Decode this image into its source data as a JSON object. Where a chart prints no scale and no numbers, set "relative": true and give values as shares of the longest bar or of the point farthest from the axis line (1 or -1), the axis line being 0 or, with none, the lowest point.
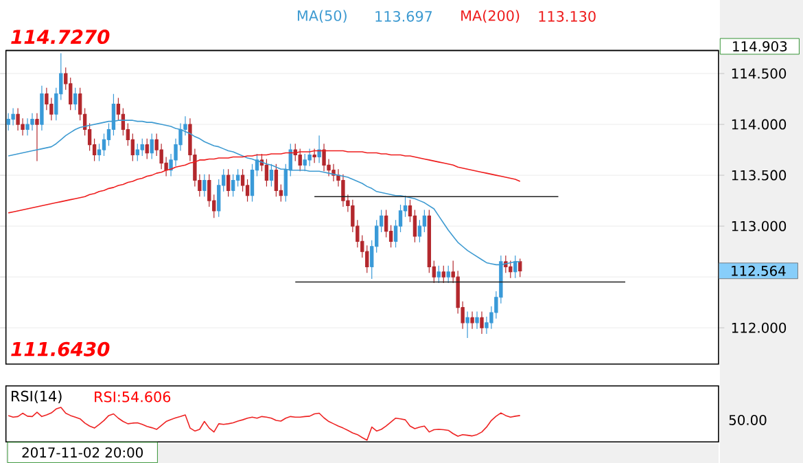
{
  "chart_data": [
    {
      "type": "candlestick",
      "categories": [
        null,
        null,
        null,
        null,
        null,
        null,
        null,
        null,
        null,
        null,
        null,
        null,
        null,
        null,
        null,
        null,
        null,
        null,
        null,
        null,
        null,
        null,
        null,
        null,
        null,
        null,
        null,
        null,
        null,
        null,
        null,
        null,
        null,
        null,
        null,
        null,
        null,
        null,
        null,
        null,
        null,
        null,
        null,
        null,
        null,
        null,
        null,
        null,
        null,
        null,
        null,
        null,
        null,
        null,
        null,
        null,
        null,
        null,
        null,
        null,
        null,
        null,
        null,
        null,
        null,
        null,
        null,
        null,
        null,
        null,
        null,
        null,
        null,
        null,
        null,
        null,
        null,
        null,
        null,
        null,
        null,
        null,
        null,
        null,
        null,
        null,
        null,
        null,
        null,
        null,
        null,
        null,
        null,
        null,
        null,
        null,
        null,
        null,
        null,
        null,
        null,
        null,
        null,
        null,
        null,
        null,
        null,
        null,
        null,
        null,
        null,
        null,
        null,
        null,
        null,
        null,
        null,
        null,
        null,
        null,
        null,
        null,
        null,
        null,
        null,
        null,
        null,
        null,
        null,
        null,
        null,
        null,
        null,
        null,
        null,
        null,
        null,
        null,
        null,
        null,
        null,
        null,
        null,
        null,
        null,
        null,
        null,
        null,
        null
      ],
      "ohlc": [
        [
          114.0,
          114.11,
          113.94,
          114.05
        ],
        [
          114.05,
          114.16,
          113.99,
          114.1
        ],
        [
          114.1,
          114.16,
          113.94,
          114.0
        ],
        [
          114.0,
          114.06,
          113.89,
          113.95
        ],
        [
          113.95,
          114.06,
          113.89,
          114.0
        ],
        [
          114.0,
          114.11,
          113.94,
          114.05
        ],
        [
          114.05,
          114.11,
          113.64,
          114.0
        ],
        [
          114.0,
          114.38,
          113.94,
          114.3
        ],
        [
          114.3,
          114.36,
          114.14,
          114.2
        ],
        [
          114.2,
          114.26,
          114.04,
          114.1
        ],
        [
          114.1,
          114.36,
          114.04,
          114.3
        ],
        [
          114.3,
          114.7,
          114.24,
          114.5
        ],
        [
          114.5,
          114.56,
          114.34,
          114.4
        ],
        [
          114.4,
          114.46,
          114.14,
          114.2
        ],
        [
          114.2,
          114.36,
          114.14,
          114.3
        ],
        [
          114.3,
          114.36,
          114.04,
          114.1
        ],
        [
          114.1,
          114.16,
          113.89,
          113.95
        ],
        [
          113.95,
          114.01,
          113.74,
          113.8
        ],
        [
          113.8,
          113.86,
          113.64,
          113.7
        ],
        [
          113.7,
          113.81,
          113.64,
          113.75
        ],
        [
          113.75,
          113.91,
          113.69,
          113.85
        ],
        [
          113.85,
          114.01,
          113.79,
          113.95
        ],
        [
          113.95,
          114.3,
          113.89,
          114.2
        ],
        [
          114.2,
          114.26,
          114.04,
          114.1
        ],
        [
          114.1,
          114.16,
          113.89,
          113.95
        ],
        [
          113.95,
          114.01,
          113.79,
          113.85
        ],
        [
          113.85,
          113.91,
          113.64,
          113.7
        ],
        [
          113.7,
          113.81,
          113.64,
          113.75
        ],
        [
          113.75,
          113.86,
          113.69,
          113.8
        ],
        [
          113.8,
          113.86,
          113.66,
          113.72
        ],
        [
          113.72,
          113.91,
          113.66,
          113.85
        ],
        [
          113.85,
          113.91,
          113.69,
          113.75
        ],
        [
          113.75,
          113.81,
          113.56,
          113.62
        ],
        [
          113.62,
          113.68,
          113.49,
          113.55
        ],
        [
          113.55,
          113.71,
          113.49,
          113.65
        ],
        [
          113.65,
          113.86,
          113.59,
          113.8
        ],
        [
          113.8,
          114.01,
          113.74,
          113.95
        ],
        [
          113.95,
          114.08,
          113.89,
          114.0
        ],
        [
          114.0,
          114.06,
          113.64,
          113.7
        ],
        [
          113.7,
          113.76,
          113.39,
          113.45
        ],
        [
          113.45,
          113.51,
          113.29,
          113.35
        ],
        [
          113.35,
          113.51,
          113.29,
          113.45
        ],
        [
          113.45,
          113.51,
          113.19,
          113.25
        ],
        [
          113.25,
          113.31,
          113.08,
          113.15
        ],
        [
          113.15,
          113.46,
          113.09,
          113.4
        ],
        [
          113.4,
          113.56,
          113.34,
          113.5
        ],
        [
          113.5,
          113.56,
          113.29,
          113.35
        ],
        [
          113.35,
          113.51,
          113.29,
          113.45
        ],
        [
          113.45,
          113.56,
          113.39,
          113.5
        ],
        [
          113.5,
          113.56,
          113.34,
          113.4
        ],
        [
          113.4,
          113.46,
          113.24,
          113.3
        ],
        [
          113.3,
          113.61,
          113.24,
          113.55
        ],
        [
          113.55,
          113.71,
          113.49,
          113.65
        ],
        [
          113.65,
          113.71,
          113.54,
          113.6
        ],
        [
          113.6,
          113.66,
          113.39,
          113.45
        ],
        [
          113.45,
          113.61,
          113.39,
          113.55
        ],
        [
          113.55,
          113.61,
          113.29,
          113.35
        ],
        [
          113.35,
          113.41,
          113.24,
          113.3
        ],
        [
          113.3,
          113.61,
          113.24,
          113.55
        ],
        [
          113.55,
          113.81,
          113.49,
          113.75
        ],
        [
          113.75,
          113.81,
          113.64,
          113.7
        ],
        [
          113.7,
          113.76,
          113.54,
          113.6
        ],
        [
          113.6,
          113.71,
          113.54,
          113.65
        ],
        [
          113.65,
          113.76,
          113.59,
          113.7
        ],
        [
          113.7,
          113.76,
          113.62,
          113.68
        ],
        [
          113.68,
          113.89,
          113.62,
          113.75
        ],
        [
          113.75,
          113.81,
          113.54,
          113.6
        ],
        [
          113.6,
          113.66,
          113.49,
          113.55
        ],
        [
          113.55,
          113.61,
          113.44,
          113.5
        ],
        [
          113.5,
          113.56,
          113.39,
          113.45
        ],
        [
          113.45,
          113.51,
          113.19,
          113.25
        ],
        [
          113.25,
          113.31,
          113.14,
          113.2
        ],
        [
          113.2,
          113.26,
          112.94,
          113.0
        ],
        [
          113.0,
          113.06,
          112.79,
          112.85
        ],
        [
          112.85,
          112.91,
          112.69,
          112.75
        ],
        [
          112.75,
          112.81,
          112.54,
          112.6
        ],
        [
          112.6,
          112.86,
          112.48,
          112.8
        ],
        [
          112.8,
          113.06,
          112.74,
          113.0
        ],
        [
          113.0,
          113.16,
          112.94,
          113.1
        ],
        [
          113.1,
          113.16,
          112.89,
          112.95
        ],
        [
          112.95,
          113.01,
          112.79,
          112.85
        ],
        [
          112.85,
          113.06,
          112.79,
          113.0
        ],
        [
          113.0,
          113.21,
          112.94,
          113.15
        ],
        [
          113.15,
          113.3,
          113.09,
          113.2
        ],
        [
          113.2,
          113.26,
          113.04,
          113.1
        ],
        [
          113.1,
          113.16,
          112.84,
          112.9
        ],
        [
          112.9,
          113.06,
          112.84,
          113.0
        ],
        [
          113.0,
          113.16,
          112.94,
          113.1
        ],
        [
          113.1,
          113.16,
          112.54,
          112.6
        ],
        [
          112.6,
          112.66,
          112.44,
          112.5
        ],
        [
          112.5,
          112.61,
          112.44,
          112.55
        ],
        [
          112.55,
          112.61,
          112.44,
          112.5
        ],
        [
          112.5,
          112.61,
          112.44,
          112.55
        ],
        [
          112.55,
          112.66,
          112.44,
          112.5
        ],
        [
          112.5,
          112.56,
          112.14,
          112.2
        ],
        [
          112.2,
          112.26,
          111.99,
          112.05
        ],
        [
          112.05,
          112.16,
          111.9,
          112.1
        ],
        [
          112.1,
          112.16,
          111.99,
          112.05
        ],
        [
          112.05,
          112.16,
          111.99,
          112.1
        ],
        [
          112.1,
          112.16,
          111.94,
          112.0
        ],
        [
          112.0,
          112.11,
          111.94,
          112.05
        ],
        [
          112.05,
          112.21,
          111.99,
          112.15
        ],
        [
          112.15,
          112.36,
          112.09,
          112.3
        ],
        [
          112.3,
          112.71,
          112.24,
          112.65
        ],
        [
          112.65,
          112.71,
          112.54,
          112.6
        ],
        [
          112.6,
          112.66,
          112.49,
          112.55
        ],
        [
          112.55,
          112.71,
          112.49,
          112.65
        ],
        [
          112.65,
          112.68,
          112.5,
          112.56
        ],
        null,
        null,
        null,
        null,
        null,
        null,
        null,
        null,
        null,
        null,
        null,
        null,
        null,
        null,
        null,
        null,
        null,
        null,
        null,
        null,
        null,
        null,
        null,
        null,
        null,
        null,
        null,
        null,
        null,
        null,
        null,
        null,
        null,
        null,
        null,
        null,
        null,
        null,
        null,
        null,
        null
      ],
      "colors": [
        "#3a9ad8",
        "#3a9ad8",
        "#b3282d",
        "#b3282d",
        "#3a9ad8",
        "#3a9ad8",
        "#b3282d",
        "#3a9ad8",
        "#b3282d",
        "#b3282d",
        "#3a9ad8",
        "#3a9ad8",
        "#b3282d",
        "#b3282d",
        "#3a9ad8",
        "#b3282d",
        "#b3282d",
        "#b3282d",
        "#b3282d",
        "#3a9ad8",
        "#3a9ad8",
        "#3a9ad8",
        "#3a9ad8",
        "#b3282d",
        "#b3282d",
        "#b3282d",
        "#b3282d",
        "#3a9ad8",
        "#3a9ad8",
        "#b3282d",
        "#3a9ad8",
        "#b3282d",
        "#b3282d",
        "#b3282d",
        "#3a9ad8",
        "#3a9ad8",
        "#3a9ad8",
        "#3a9ad8",
        "#b3282d",
        "#b3282d",
        "#b3282d",
        "#3a9ad8",
        "#b3282d",
        "#b3282d",
        "#3a9ad8",
        "#3a9ad8",
        "#b3282d",
        "#3a9ad8",
        "#3a9ad8",
        "#b3282d",
        "#b3282d",
        "#3a9ad8",
        "#3a9ad8",
        "#b3282d",
        "#b3282d",
        "#3a9ad8",
        "#b3282d",
        "#b3282d",
        "#3a9ad8",
        "#3a9ad8",
        "#b3282d",
        "#b3282d",
        "#3a9ad8",
        "#3a9ad8",
        "#b3282d",
        "#3a9ad8",
        "#b3282d",
        "#b3282d",
        "#b3282d",
        "#b3282d",
        "#b3282d",
        "#b3282d",
        "#b3282d",
        "#b3282d",
        "#b3282d",
        "#b3282d",
        "#3a9ad8",
        "#3a9ad8",
        "#3a9ad8",
        "#b3282d",
        "#b3282d",
        "#3a9ad8",
        "#3a9ad8",
        "#3a9ad8",
        "#b3282d",
        "#b3282d",
        "#3a9ad8",
        "#3a9ad8",
        "#b3282d",
        "#b3282d",
        "#3a9ad8",
        "#b3282d",
        "#3a9ad8",
        "#b3282d",
        "#b3282d",
        "#b3282d",
        "#3a9ad8",
        "#b3282d",
        "#3a9ad8",
        "#b3282d",
        "#3a9ad8",
        "#3a9ad8",
        "#3a9ad8",
        "#3a9ad8",
        "#b3282d",
        "#b3282d",
        "#3a9ad8",
        "#b3282d",
        null,
        null,
        null,
        null,
        null,
        null,
        null,
        null,
        null,
        null,
        null,
        null,
        null,
        null,
        null,
        null,
        null,
        null,
        null,
        null,
        null,
        null,
        null,
        null,
        null,
        null,
        null,
        null,
        null,
        null,
        null,
        null,
        null,
        null,
        null,
        null,
        null,
        null,
        null,
        null,
        null
      ],
      "series": [
        {
          "type": "line",
          "name": "MA(50)",
          "color": "#3d9ad1",
          "values": [
            113.69,
            113.7,
            113.71,
            113.72,
            113.73,
            113.74,
            113.75,
            113.76,
            113.77,
            113.78,
            113.81,
            113.85,
            113.89,
            113.92,
            113.95,
            113.97,
            113.98,
            113.99,
            114.0,
            114.01,
            114.02,
            114.03,
            114.03,
            114.04,
            114.04,
            114.04,
            114.04,
            114.03,
            114.03,
            114.02,
            114.02,
            114.01,
            114.0,
            113.99,
            113.98,
            113.96,
            113.95,
            113.93,
            113.91,
            113.88,
            113.86,
            113.83,
            113.81,
            113.79,
            113.78,
            113.76,
            113.74,
            113.73,
            113.71,
            113.69,
            113.67,
            113.66,
            113.64,
            113.63,
            113.61,
            113.6,
            113.58,
            113.56,
            113.56,
            113.55,
            113.55,
            113.55,
            113.55,
            113.54,
            113.54,
            113.54,
            113.53,
            113.52,
            113.51,
            113.5,
            113.49,
            113.48,
            113.46,
            113.44,
            113.42,
            113.39,
            113.37,
            113.34,
            113.33,
            113.32,
            113.31,
            113.3,
            113.3,
            113.29,
            113.28,
            113.27,
            113.25,
            113.23,
            113.2,
            113.17,
            113.1,
            113.03,
            112.96,
            112.9,
            112.84,
            112.8,
            112.76,
            112.73,
            112.7,
            112.67,
            112.64,
            112.63,
            112.62,
            112.62,
            112.63,
            112.64,
            112.65,
            112.65,
            null,
            null,
            null,
            null,
            null,
            null,
            null,
            null,
            null,
            null,
            null,
            null,
            null,
            null,
            null,
            null,
            null,
            null,
            null,
            null,
            null,
            null,
            null,
            null,
            null,
            null,
            null,
            null,
            null,
            null,
            null,
            null,
            null,
            null,
            null,
            null,
            null,
            null,
            null,
            null,
            null
          ]
        },
        {
          "type": "line",
          "name": "MA(200)",
          "color": "#ee1c1c",
          "values": [
            113.13,
            113.14,
            113.15,
            113.16,
            113.17,
            113.18,
            113.19,
            113.2,
            113.21,
            113.22,
            113.23,
            113.24,
            113.25,
            113.26,
            113.27,
            113.28,
            113.29,
            113.31,
            113.32,
            113.34,
            113.35,
            113.37,
            113.38,
            113.4,
            113.41,
            113.43,
            113.44,
            113.46,
            113.47,
            113.49,
            113.5,
            113.52,
            113.53,
            113.55,
            113.56,
            113.58,
            113.59,
            113.6,
            113.62,
            113.63,
            113.65,
            113.65,
            113.66,
            113.66,
            113.67,
            113.67,
            113.67,
            113.68,
            113.68,
            113.68,
            113.69,
            113.69,
            113.7,
            113.7,
            113.7,
            113.71,
            113.71,
            113.71,
            113.72,
            113.72,
            113.72,
            113.73,
            113.73,
            113.73,
            113.74,
            113.74,
            113.74,
            113.74,
            113.74,
            113.74,
            113.74,
            113.73,
            113.73,
            113.73,
            113.73,
            113.72,
            113.72,
            113.72,
            113.71,
            113.71,
            113.7,
            113.7,
            113.7,
            113.69,
            113.69,
            113.68,
            113.67,
            113.66,
            113.65,
            113.64,
            113.63,
            113.62,
            113.61,
            113.6,
            113.58,
            113.57,
            113.56,
            113.55,
            113.54,
            113.53,
            113.52,
            113.51,
            113.5,
            113.49,
            113.48,
            113.47,
            113.46,
            113.44,
            null,
            null,
            null,
            null,
            null,
            null,
            null,
            null,
            null,
            null,
            null,
            null,
            null,
            null,
            null,
            null,
            null,
            null,
            null,
            null,
            null,
            null,
            null,
            null,
            null,
            null,
            null,
            null,
            null,
            null,
            null,
            null,
            null,
            null,
            null,
            null,
            null,
            null,
            null,
            null,
            null
          ]
        },
        {
          "type": "line",
          "color": "#202020",
          "values": [
            null,
            null,
            null,
            null,
            null,
            null,
            null,
            null,
            null,
            null,
            null,
            null,
            null,
            null,
            null,
            null,
            null,
            null,
            null,
            null,
            null,
            null,
            null,
            null,
            null,
            null,
            null,
            null,
            null,
            null,
            null,
            null,
            null,
            null,
            null,
            null,
            null,
            null,
            null,
            null,
            null,
            null,
            null,
            null,
            null,
            null,
            null,
            null,
            null,
            null,
            null,
            null,
            null,
            null,
            null,
            null,
            null,
            null,
            null,
            null,
            null,
            null,
            null,
            null,
            113.29,
            113.29,
            113.29,
            113.29,
            113.29,
            113.29,
            113.29,
            113.29,
            113.29,
            113.29,
            113.29,
            113.29,
            113.29,
            113.29,
            113.29,
            113.29,
            113.29,
            113.29,
            113.29,
            113.29,
            113.29,
            113.29,
            113.29,
            113.29,
            113.29,
            113.29,
            113.29,
            113.29,
            113.29,
            113.29,
            113.29,
            113.29,
            113.29,
            113.29,
            113.29,
            113.29,
            113.29,
            113.29,
            113.29,
            113.29,
            113.29,
            113.29,
            113.29,
            113.29,
            113.29,
            113.29,
            113.29,
            113.29,
            113.29,
            113.29,
            113.29,
            113.29,
            null,
            null,
            null,
            null,
            null,
            null,
            null,
            null,
            null,
            null,
            null,
            null,
            null,
            null,
            null,
            null,
            null,
            null,
            null,
            null,
            null,
            null,
            null,
            null,
            null,
            null,
            null,
            null,
            null,
            null,
            null,
            null,
            null
          ]
        },
        {
          "type": "line",
          "color": "#202020",
          "values": [
            null,
            null,
            null,
            null,
            null,
            null,
            null,
            null,
            null,
            null,
            null,
            null,
            null,
            null,
            null,
            null,
            null,
            null,
            null,
            null,
            null,
            null,
            null,
            null,
            null,
            null,
            null,
            null,
            null,
            null,
            null,
            null,
            null,
            null,
            null,
            null,
            null,
            null,
            null,
            null,
            null,
            null,
            null,
            null,
            null,
            null,
            null,
            null,
            null,
            null,
            null,
            null,
            null,
            null,
            null,
            null,
            null,
            null,
            null,
            null,
            112.45,
            112.45,
            112.45,
            112.45,
            112.45,
            112.45,
            112.45,
            112.45,
            112.45,
            112.45,
            112.45,
            112.45,
            112.45,
            112.45,
            112.45,
            112.45,
            112.45,
            112.45,
            112.45,
            112.45,
            112.45,
            112.45,
            112.45,
            112.45,
            112.45,
            112.45,
            112.45,
            112.45,
            112.45,
            112.45,
            112.45,
            112.45,
            112.45,
            112.45,
            112.45,
            112.45,
            112.45,
            112.45,
            112.45,
            112.45,
            112.45,
            112.45,
            112.45,
            112.45,
            112.45,
            112.45,
            112.45,
            112.45,
            112.45,
            112.45,
            112.45,
            112.45,
            112.45,
            112.45,
            112.45,
            112.45,
            112.45,
            112.45,
            112.45,
            112.45,
            112.45,
            112.45,
            112.45,
            112.45,
            112.45,
            112.45,
            112.45,
            112.45,
            112.45,
            112.45,
            null,
            null,
            null,
            null,
            null,
            null,
            null,
            null,
            null,
            null,
            null,
            null,
            null,
            null,
            null,
            null,
            null,
            null,
            null
          ]
        }
      ],
      "ylim": [
        111.643,
        114.727
      ],
      "yticks": [
        {
          "value": 112,
          "label": "112.000"
        },
        {
          "value": 112.5,
          "label": null
        },
        {
          "value": 113,
          "label": "113.000"
        },
        {
          "value": 113.5,
          "label": "113.500"
        },
        {
          "value": 114,
          "label": "114.000"
        },
        {
          "value": 114.5,
          "label": "114.500"
        }
      ],
      "grid": "y",
      "annotations": [
        "114.7270",
        "111.6430",
        "113.697",
        "113.130",
        "114.903",
        "112.564"
      ]
    },
    {
      "type": "line",
      "relative": true,
      "title": "RSI(14)",
      "subtitle": "RSI:54.606",
      "color": "#ee2222",
      "categories": [
        null,
        null,
        null,
        null,
        null,
        null,
        null,
        null,
        null,
        null,
        null,
        null,
        null,
        null,
        null,
        null,
        null,
        null,
        null,
        null,
        null,
        null,
        null,
        null,
        null,
        null,
        null,
        null,
        null,
        null,
        null,
        null,
        null,
        null,
        null,
        null,
        null,
        null,
        null,
        null,
        null,
        null,
        null,
        null,
        null,
        null,
        null,
        null,
        null,
        null,
        null,
        null,
        null,
        null,
        null,
        null,
        null,
        null,
        null,
        null,
        null,
        null,
        null,
        null,
        null,
        null,
        null,
        null,
        null,
        null,
        null,
        null,
        null,
        null,
        null,
        null,
        null,
        null,
        null,
        null,
        null,
        null,
        null,
        null,
        null,
        null,
        null,
        null,
        null,
        null,
        null,
        null,
        null,
        null,
        null,
        null,
        null,
        null,
        null,
        null,
        null,
        null,
        null,
        null,
        null,
        null,
        null,
        null,
        null,
        null,
        null,
        null,
        null,
        null,
        null,
        null,
        null,
        null,
        null,
        null,
        null,
        null,
        null,
        null,
        null,
        null,
        null,
        null,
        null,
        null,
        null,
        null,
        null,
        null,
        null,
        null,
        null,
        null,
        null,
        null,
        null,
        null,
        null,
        null,
        null,
        null,
        null,
        null,
        null
      ],
      "values": [
        0.75,
        0.7,
        0.72,
        0.82,
        0.73,
        0.72,
        0.85,
        0.72,
        0.77,
        0.83,
        0.95,
        1,
        0.82,
        0.75,
        0.7,
        0.65,
        0.52,
        0.43,
        0.37,
        0.48,
        0.6,
        0.75,
        0.8,
        0.67,
        0.57,
        0.5,
        0.52,
        0.53,
        0.48,
        0.42,
        0.38,
        0.33,
        0.45,
        0.57,
        0.63,
        0.68,
        0.72,
        0.77,
        0.37,
        0.28,
        0.33,
        0.57,
        0.37,
        0.25,
        0.5,
        0.48,
        0.5,
        0.53,
        0.58,
        0.62,
        0.67,
        0.7,
        0.67,
        0.72,
        0.7,
        0.67,
        0.6,
        0.58,
        0.67,
        0.72,
        0.7,
        0.7,
        0.72,
        0.73,
        0.8,
        0.82,
        0.68,
        0.57,
        0.5,
        0.43,
        0.37,
        0.3,
        0.22,
        0.17,
        0.08,
        0,
        0.4,
        0.28,
        0.33,
        0.43,
        0.55,
        0.67,
        0.65,
        0.62,
        0.43,
        0.35,
        0.4,
        0.43,
        0.25,
        0.32,
        0.33,
        0.32,
        0.3,
        0.2,
        0.12,
        0.17,
        0.15,
        0.13,
        0.17,
        0.25,
        0.4,
        0.6,
        0.73,
        0.83,
        0.75,
        0.7,
        0.73,
        0.75,
        null,
        null,
        null,
        null,
        null,
        null,
        null,
        null,
        null,
        null,
        null,
        null,
        null,
        null,
        null,
        null,
        null,
        null,
        null,
        null,
        null,
        null,
        null,
        null,
        null,
        null,
        null,
        null,
        null,
        null,
        null,
        null,
        null,
        null,
        null,
        null,
        null,
        null,
        null,
        null,
        null
      ],
      "annotations": [
        "50.00",
        "2017-11-02 20:00"
      ]
    }
  ]
}
